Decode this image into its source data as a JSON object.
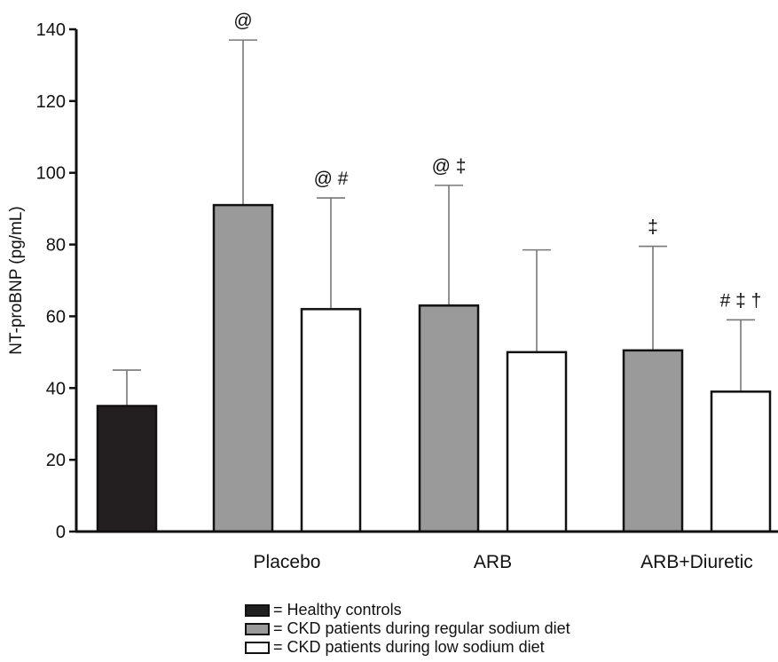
{
  "chart_data": {
    "type": "bar",
    "ylabel": "NT-proBNP (pg/mL)",
    "ylim": [
      0,
      140
    ],
    "yticks": [
      0,
      20,
      40,
      60,
      80,
      100,
      120,
      140
    ],
    "groups": [
      "",
      "Placebo",
      "ARB",
      "ARB+Diuretic"
    ],
    "series": [
      {
        "name": "= Healthy controls",
        "color": "#231f20"
      },
      {
        "name": "= CKD patients during regular sodium diet",
        "color": "#9a9a9b"
      },
      {
        "name": "= CKD patients during low sodium diet",
        "color": "#ffffff"
      }
    ],
    "bars": [
      {
        "group": 0,
        "series": 0,
        "value": 35,
        "error": 45,
        "annotation": ""
      },
      {
        "group": 1,
        "series": 1,
        "value": 91,
        "error": 137,
        "annotation": "@"
      },
      {
        "group": 1,
        "series": 2,
        "value": 62,
        "error": 93,
        "annotation": "@ #"
      },
      {
        "group": 2,
        "series": 1,
        "value": 63,
        "error": 96.5,
        "annotation": "@ ‡"
      },
      {
        "group": 2,
        "series": 2,
        "value": 50,
        "error": 78.5,
        "annotation": ""
      },
      {
        "group": 3,
        "series": 1,
        "value": 50.5,
        "error": 79.5,
        "annotation": "‡"
      },
      {
        "group": 3,
        "series": 2,
        "value": 39,
        "error": 59,
        "annotation": "# ‡ †"
      }
    ],
    "grid": false,
    "legend_position": "bottom"
  },
  "legend": {
    "items": [
      {
        "label": "= Healthy controls",
        "color": "#231f20"
      },
      {
        "label": "= CKD patients during regular sodium diet",
        "color": "#9a9a9b"
      },
      {
        "label": "= CKD patients during low sodium diet",
        "color": "#ffffff"
      }
    ]
  }
}
